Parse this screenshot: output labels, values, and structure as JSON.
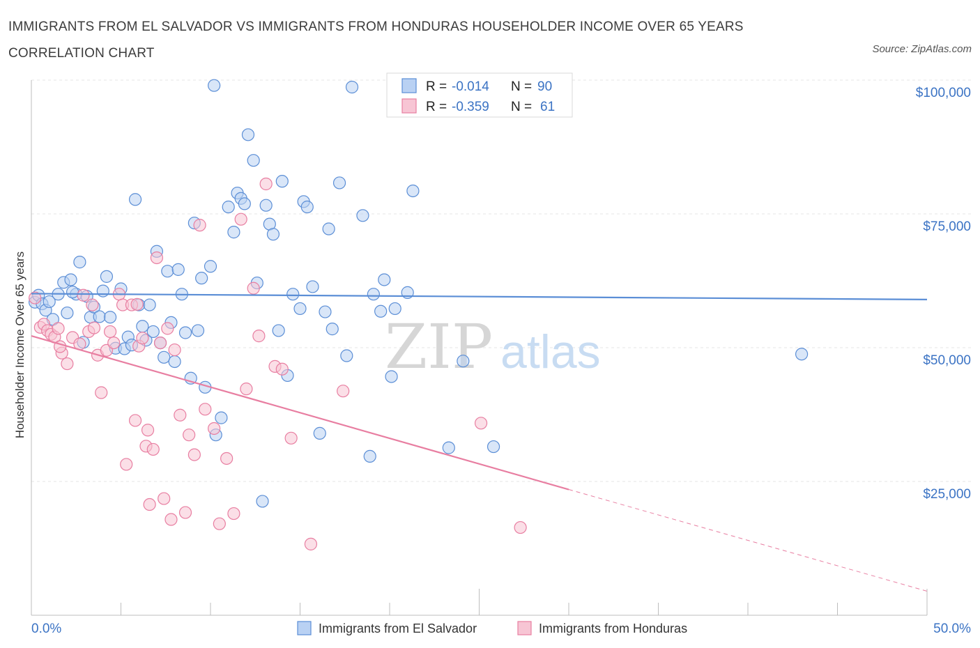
{
  "header": {
    "title": "IMMIGRANTS FROM EL SALVADOR VS IMMIGRANTS FROM HONDURAS HOUSEHOLDER INCOME OVER 65 YEARS CORRELATION CHART",
    "source": "Source: ZipAtlas.com"
  },
  "watermark": {
    "part1": "ZIP",
    "part2": "atlas"
  },
  "legend": {
    "rows": [
      {
        "r_label": "R = ",
        "r_value": "-0.014",
        "n_label": "N = ",
        "n_value": "90",
        "color": "#5b8ed6",
        "fill": "#b9d1f3"
      },
      {
        "r_label": "R = ",
        "r_value": "-0.359",
        "n_label": "N = ",
        "n_value": "61",
        "color": "#e87ea1",
        "fill": "#f7c5d4"
      }
    ]
  },
  "chart_data": {
    "type": "scatter",
    "title": "IMMIGRANTS FROM EL SALVADOR VS IMMIGRANTS FROM HONDURAS HOUSEHOLDER INCOME OVER 65 YEARS CORRELATION CHART",
    "xlabel": "",
    "ylabel": "Householder Income Over 65 years",
    "xlim": [
      0,
      50
    ],
    "ylim": [
      0,
      100000
    ],
    "x_tick_labels": [
      "0.0%",
      "50.0%"
    ],
    "y_ticks": [
      25000,
      50000,
      75000,
      100000
    ],
    "y_tick_labels": [
      "$25,000",
      "$50,000",
      "$75,000",
      "$100,000"
    ],
    "grid": true,
    "legend_position": "top-center",
    "series": [
      {
        "name": "Immigrants from El Salvador",
        "color": "#5b8ed6",
        "fill": "#b9d1f3",
        "trend": {
          "x": [
            0,
            50
          ],
          "y": [
            60100,
            59000
          ],
          "dashed_from": null
        },
        "points": [
          [
            0.2,
            58500
          ],
          [
            0.4,
            59800
          ],
          [
            0.6,
            58200
          ],
          [
            0.8,
            57000
          ],
          [
            1.0,
            58600
          ],
          [
            1.2,
            55300
          ],
          [
            1.5,
            60000
          ],
          [
            1.8,
            62200
          ],
          [
            2.0,
            56500
          ],
          [
            2.2,
            62700
          ],
          [
            2.5,
            60000
          ],
          [
            2.7,
            66000
          ],
          [
            2.9,
            51000
          ],
          [
            3.1,
            59600
          ],
          [
            3.3,
            55700
          ],
          [
            3.5,
            57600
          ],
          [
            3.8,
            55800
          ],
          [
            4.0,
            60600
          ],
          [
            4.2,
            63300
          ],
          [
            4.4,
            55700
          ],
          [
            4.7,
            49900
          ],
          [
            5.0,
            61000
          ],
          [
            5.2,
            49800
          ],
          [
            5.4,
            52000
          ],
          [
            5.6,
            50500
          ],
          [
            5.8,
            77700
          ],
          [
            6.0,
            58000
          ],
          [
            6.2,
            54000
          ],
          [
            6.4,
            51400
          ],
          [
            6.6,
            58000
          ],
          [
            6.8,
            53000
          ],
          [
            7.0,
            68000
          ],
          [
            7.2,
            50900
          ],
          [
            7.4,
            48200
          ],
          [
            7.6,
            64300
          ],
          [
            7.8,
            54700
          ],
          [
            8.0,
            47400
          ],
          [
            8.2,
            64600
          ],
          [
            8.4,
            60000
          ],
          [
            8.6,
            52800
          ],
          [
            8.9,
            44300
          ],
          [
            9.1,
            73300
          ],
          [
            9.3,
            53200
          ],
          [
            9.5,
            63000
          ],
          [
            9.7,
            42600
          ],
          [
            10.0,
            65200
          ],
          [
            10.3,
            33700
          ],
          [
            10.6,
            36900
          ],
          [
            10.2,
            99000
          ],
          [
            11.0,
            76300
          ],
          [
            11.3,
            71600
          ],
          [
            11.5,
            78900
          ],
          [
            11.7,
            77900
          ],
          [
            11.9,
            76900
          ],
          [
            12.1,
            89800
          ],
          [
            12.4,
            85000
          ],
          [
            12.6,
            62100
          ],
          [
            12.9,
            21300
          ],
          [
            13.1,
            76600
          ],
          [
            13.3,
            73100
          ],
          [
            13.5,
            71200
          ],
          [
            13.8,
            53200
          ],
          [
            14.0,
            81100
          ],
          [
            14.3,
            44800
          ],
          [
            14.6,
            60000
          ],
          [
            15.0,
            57300
          ],
          [
            15.2,
            77300
          ],
          [
            15.4,
            76300
          ],
          [
            15.7,
            61400
          ],
          [
            16.1,
            34000
          ],
          [
            16.4,
            56700
          ],
          [
            16.6,
            72200
          ],
          [
            16.8,
            53500
          ],
          [
            17.2,
            80800
          ],
          [
            17.6,
            48500
          ],
          [
            17.9,
            98700
          ],
          [
            18.5,
            74700
          ],
          [
            18.9,
            29700
          ],
          [
            19.1,
            60000
          ],
          [
            19.5,
            56800
          ],
          [
            19.7,
            62700
          ],
          [
            20.1,
            44600
          ],
          [
            20.3,
            57300
          ],
          [
            21.0,
            60300
          ],
          [
            21.3,
            79300
          ],
          [
            23.3,
            31300
          ],
          [
            24.1,
            47500
          ],
          [
            25.8,
            31500
          ],
          [
            43.0,
            48800
          ],
          [
            2.3,
            60400
          ]
        ]
      },
      {
        "name": "Immigrants from Honduras",
        "color": "#e87ea1",
        "fill": "#f7c5d4",
        "trend": {
          "x": [
            0,
            30,
            50
          ],
          "y": [
            52200,
            23500,
            4500
          ],
          "dashed_from": 30
        },
        "points": [
          [
            0.2,
            59300
          ],
          [
            0.5,
            53800
          ],
          [
            0.7,
            54400
          ],
          [
            0.9,
            53200
          ],
          [
            1.1,
            52500
          ],
          [
            1.3,
            52000
          ],
          [
            1.5,
            53600
          ],
          [
            1.7,
            49000
          ],
          [
            2.0,
            47000
          ],
          [
            2.3,
            51900
          ],
          [
            2.7,
            50700
          ],
          [
            2.9,
            59800
          ],
          [
            3.2,
            53000
          ],
          [
            3.5,
            53700
          ],
          [
            3.7,
            48600
          ],
          [
            3.9,
            41600
          ],
          [
            4.2,
            49500
          ],
          [
            4.4,
            53000
          ],
          [
            4.6,
            50900
          ],
          [
            4.9,
            60000
          ],
          [
            5.1,
            58000
          ],
          [
            5.3,
            28200
          ],
          [
            5.6,
            58000
          ],
          [
            5.8,
            36400
          ],
          [
            6.0,
            50300
          ],
          [
            6.2,
            51800
          ],
          [
            6.4,
            31600
          ],
          [
            6.6,
            20700
          ],
          [
            6.8,
            31000
          ],
          [
            7.0,
            66800
          ],
          [
            7.2,
            50900
          ],
          [
            7.4,
            21800
          ],
          [
            7.6,
            53600
          ],
          [
            7.8,
            17900
          ],
          [
            8.0,
            49600
          ],
          [
            8.3,
            37400
          ],
          [
            8.6,
            19200
          ],
          [
            8.8,
            33700
          ],
          [
            9.1,
            30000
          ],
          [
            9.4,
            72900
          ],
          [
            9.7,
            38500
          ],
          [
            10.2,
            34900
          ],
          [
            10.5,
            17100
          ],
          [
            10.9,
            29300
          ],
          [
            11.3,
            19000
          ],
          [
            11.7,
            74000
          ],
          [
            12.0,
            42300
          ],
          [
            12.4,
            61100
          ],
          [
            12.7,
            52200
          ],
          [
            13.1,
            80600
          ],
          [
            13.6,
            46500
          ],
          [
            14.0,
            46000
          ],
          [
            14.5,
            33100
          ],
          [
            15.6,
            13300
          ],
          [
            17.4,
            41900
          ],
          [
            25.1,
            35900
          ],
          [
            27.3,
            16400
          ],
          [
            6.5,
            34600
          ],
          [
            5.9,
            58100
          ],
          [
            3.4,
            58000
          ],
          [
            1.6,
            50200
          ]
        ]
      }
    ]
  }
}
